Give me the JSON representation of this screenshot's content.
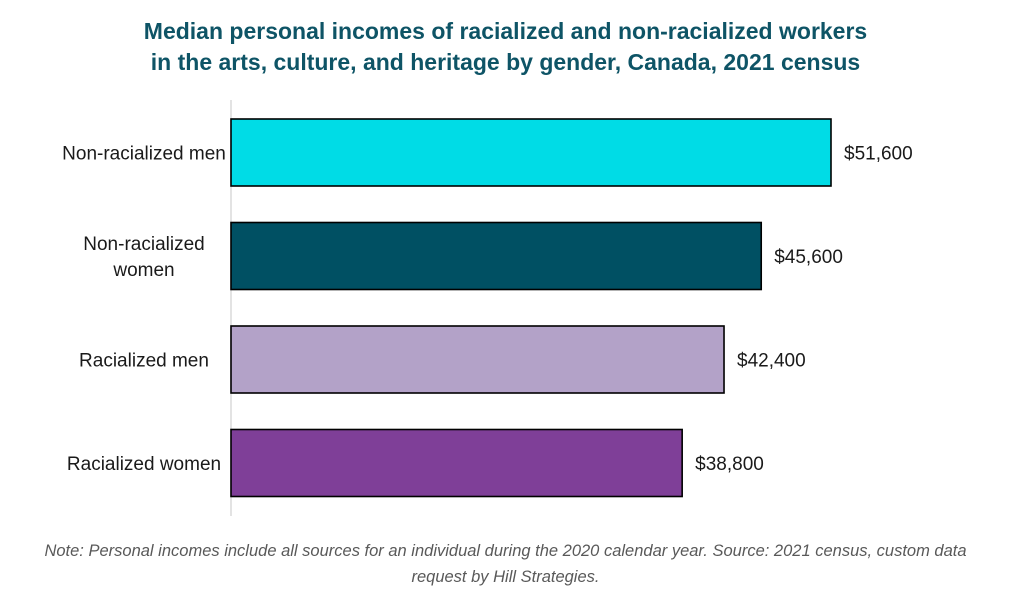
{
  "chart_data": {
    "type": "bar",
    "orientation": "horizontal",
    "title_lines": [
      "Median personal incomes of racialized and non-racialized workers",
      "in the arts, culture, and heritage by gender, Canada, 2021 census"
    ],
    "categories": [
      [
        "Non-racialized men"
      ],
      [
        "Non-racialized",
        "women"
      ],
      [
        "Racialized men"
      ],
      [
        "Racialized women"
      ]
    ],
    "values": [
      51600,
      45600,
      42400,
      38800
    ],
    "value_labels": [
      "$51,600",
      "$45,600",
      "$42,400",
      "$38,800"
    ],
    "colors": [
      "#00DCE6",
      "#005063",
      "#B3A2C8",
      "#7F3F98"
    ],
    "xlim": [
      0,
      60000
    ],
    "grid": false,
    "legend": "none",
    "note": "Note: Personal incomes include all sources for an individual during the 2020 calendar year. Source: 2021 census, custom data request by Hill Strategies."
  }
}
